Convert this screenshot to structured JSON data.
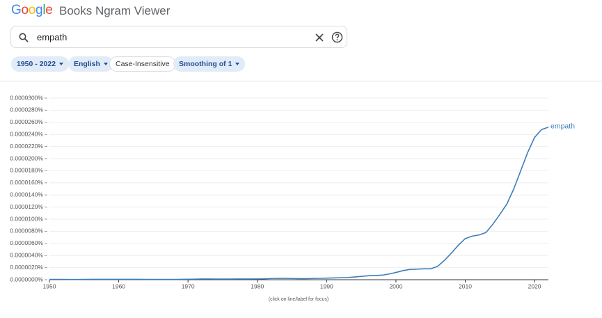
{
  "header": {
    "logo": "Google",
    "title": "Books Ngram Viewer"
  },
  "search": {
    "query": "empath"
  },
  "chips": [
    "1950 - 2022",
    "English",
    "Case-Insensitive",
    "Smoothing of 1"
  ],
  "chart_data": {
    "type": "line",
    "x": [
      1950,
      1951,
      1952,
      1953,
      1954,
      1955,
      1956,
      1957,
      1958,
      1959,
      1960,
      1961,
      1962,
      1963,
      1964,
      1965,
      1966,
      1967,
      1968,
      1969,
      1970,
      1971,
      1972,
      1973,
      1974,
      1975,
      1976,
      1977,
      1978,
      1979,
      1980,
      1981,
      1982,
      1983,
      1984,
      1985,
      1986,
      1987,
      1988,
      1989,
      1990,
      1991,
      1992,
      1993,
      1994,
      1995,
      1996,
      1997,
      1998,
      1999,
      2000,
      2001,
      2002,
      2003,
      2004,
      2005,
      2006,
      2007,
      2008,
      2009,
      2010,
      2011,
      2012,
      2013,
      2014,
      2015,
      2016,
      2017,
      2018,
      2019,
      2020,
      2021,
      2022
    ],
    "series": [
      {
        "name": "empath",
        "color": "#3e7cb8",
        "values": [
          5e-08,
          5e-08,
          5e-08,
          4e-08,
          4e-08,
          5e-08,
          6e-08,
          6e-08,
          6e-08,
          6e-08,
          6e-08,
          6e-08,
          6e-08,
          6e-08,
          5e-08,
          5e-08,
          5e-08,
          5e-08,
          5e-08,
          6e-08,
          8e-08,
          1e-07,
          1.2e-07,
          1.2e-07,
          1.1e-07,
          1.1e-07,
          1.1e-07,
          1.2e-07,
          1.2e-07,
          1.2e-07,
          1.3e-07,
          1.5e-07,
          2e-07,
          2.3e-07,
          2.2e-07,
          2e-07,
          1.8e-07,
          1.8e-07,
          2e-07,
          2.3e-07,
          2.7e-07,
          3e-07,
          3.3e-07,
          3.6e-07,
          4.5e-07,
          5.5e-07,
          6.5e-07,
          7e-07,
          7.5e-07,
          9.5e-07,
          1.2e-06,
          1.5e-06,
          1.7e-06,
          1.75e-06,
          1.8e-06,
          1.8e-06,
          2.2e-06,
          3.2e-06,
          4.4e-06,
          5.7e-06,
          6.8e-06,
          7.2e-06,
          7.4e-06,
          7.8e-06,
          9.2e-06,
          1.08e-05,
          1.25e-05,
          1.5e-05,
          1.8e-05,
          2.1e-05,
          2.35e-05,
          2.48e-05,
          2.52e-05
        ]
      }
    ],
    "xlim": [
      1950,
      2022
    ],
    "xticks": [
      1950,
      1960,
      1970,
      1980,
      1990,
      2000,
      2010,
      2020
    ],
    "ylim": [
      0,
      3e-05
    ],
    "yticks": [
      {
        "value": 0,
        "label": "0.0000000%"
      },
      {
        "value": 2e-06,
        "label": "0.0000020%"
      },
      {
        "value": 4e-06,
        "label": "0.0000040%"
      },
      {
        "value": 6e-06,
        "label": "0.0000060%"
      },
      {
        "value": 8e-06,
        "label": "0.0000080%"
      },
      {
        "value": 1e-05,
        "label": "0.0000100%"
      },
      {
        "value": 1.2e-05,
        "label": "0.0000120%"
      },
      {
        "value": 1.4e-05,
        "label": "0.0000140%"
      },
      {
        "value": 1.6e-05,
        "label": "0.0000160%"
      },
      {
        "value": 1.8e-05,
        "label": "0.0000180%"
      },
      {
        "value": 2e-05,
        "label": "0.0000200%"
      },
      {
        "value": 2.2e-05,
        "label": "0.0000220%"
      },
      {
        "value": 2.4e-05,
        "label": "0.0000240%"
      },
      {
        "value": 2.6e-05,
        "label": "0.0000260%"
      },
      {
        "value": 2.8e-05,
        "label": "0.0000280%"
      },
      {
        "value": 3e-05,
        "label": "0.0000300%"
      }
    ],
    "grid": true,
    "note": "(click on line/label for focus)"
  }
}
